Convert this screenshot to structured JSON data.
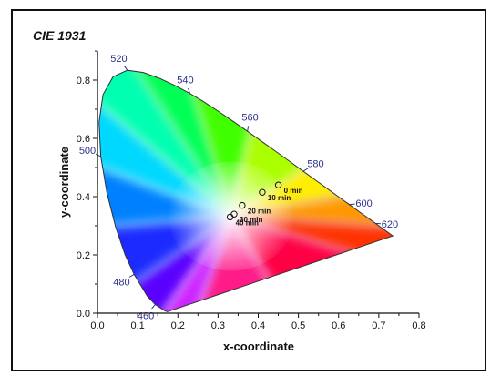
{
  "chart_data": {
    "type": "scatter",
    "title": "CIE 1931",
    "xlabel": "x-coordinate",
    "ylabel": "y-coordinate",
    "xlim": [
      0.0,
      0.8
    ],
    "ylim": [
      0.0,
      0.9
    ],
    "x_ticks": [
      "0.0",
      "0.1",
      "0.2",
      "0.3",
      "0.4",
      "0.5",
      "0.6",
      "0.7",
      "0.8"
    ],
    "y_ticks": [
      "0.0",
      "0.2",
      "0.4",
      "0.6",
      "0.8"
    ],
    "grid": false,
    "wavelength_labels": [
      {
        "text": "460",
        "x": 0.144,
        "y": 0.03
      },
      {
        "text": "480",
        "x": 0.091,
        "y": 0.133
      },
      {
        "text": "500",
        "x": 0.008,
        "y": 0.538
      },
      {
        "text": "520",
        "x": 0.074,
        "y": 0.834
      },
      {
        "text": "540",
        "x": 0.23,
        "y": 0.754
      },
      {
        "text": "560",
        "x": 0.373,
        "y": 0.624
      },
      {
        "text": "580",
        "x": 0.512,
        "y": 0.487
      },
      {
        "text": "600",
        "x": 0.627,
        "y": 0.373
      },
      {
        "text": "620",
        "x": 0.691,
        "y": 0.308
      }
    ],
    "series": [
      {
        "points": [
          {
            "label": "0 min",
            "x": 0.45,
            "y": 0.44
          },
          {
            "label": "10 min",
            "x": 0.41,
            "y": 0.415
          },
          {
            "label": "20 min",
            "x": 0.36,
            "y": 0.37
          },
          {
            "label": "30 min",
            "x": 0.34,
            "y": 0.34
          },
          {
            "label": "40 min",
            "x": 0.33,
            "y": 0.33
          }
        ]
      }
    ],
    "colors": {
      "axis": "#111111",
      "wavelength_text": "#2b2f8c",
      "frame": "#111111"
    }
  }
}
